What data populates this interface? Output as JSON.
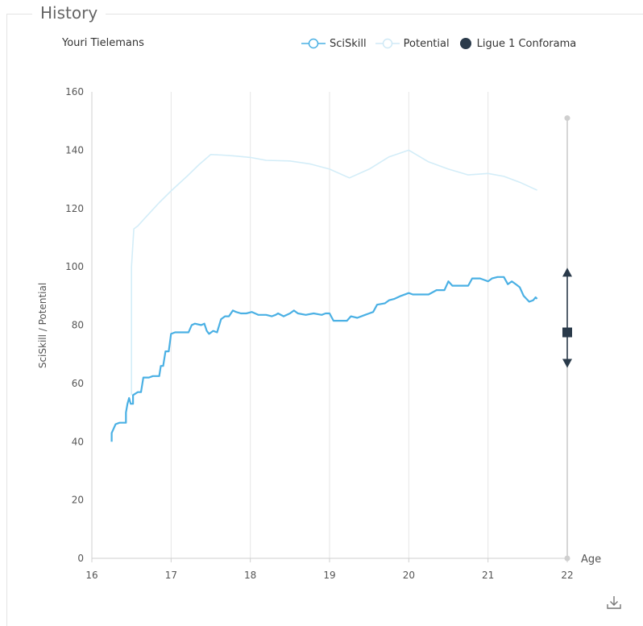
{
  "panel": {
    "title": "History"
  },
  "player": {
    "name": "Youri Tielemans"
  },
  "legend": {
    "sciskill_label": "SciSkill",
    "potential_label": "Potential",
    "league_label": "Ligue 1 Conforama"
  },
  "colors": {
    "sciskill": "#4ab0e4",
    "potential": "#d3edf8",
    "league": "#2a3a4a",
    "grid": "#e6e6e6",
    "axis": "#555555"
  },
  "icons": {
    "download": "download-icon"
  },
  "chart_data": {
    "type": "line",
    "ylabel": "SciSkill / Potential",
    "xlabel": "Age",
    "xlim": [
      16,
      22
    ],
    "ylim": [
      0,
      160
    ],
    "x_ticks": [
      16,
      17,
      18,
      19,
      20,
      21,
      22
    ],
    "y_ticks": [
      0,
      20,
      40,
      60,
      80,
      100,
      120,
      140,
      160
    ],
    "grid": "vertical",
    "legend_position": "top-right",
    "series": [
      {
        "name": "SciSkill",
        "points": [
          [
            16.25,
            40
          ],
          [
            16.25,
            43
          ],
          [
            16.3,
            46
          ],
          [
            16.35,
            46.5
          ],
          [
            16.43,
            46.5
          ],
          [
            16.43,
            50
          ],
          [
            16.45,
            53
          ],
          [
            16.47,
            55
          ],
          [
            16.49,
            53
          ],
          [
            16.52,
            53
          ],
          [
            16.52,
            56
          ],
          [
            16.58,
            57
          ],
          [
            16.62,
            57
          ],
          [
            16.65,
            62
          ],
          [
            16.72,
            62
          ],
          [
            16.77,
            62.5
          ],
          [
            16.85,
            62.5
          ],
          [
            16.87,
            66
          ],
          [
            16.9,
            66
          ],
          [
            16.93,
            71
          ],
          [
            16.97,
            71
          ],
          [
            17.0,
            77
          ],
          [
            17.05,
            77.5
          ],
          [
            17.22,
            77.5
          ],
          [
            17.26,
            80
          ],
          [
            17.3,
            80.5
          ],
          [
            17.38,
            80
          ],
          [
            17.42,
            80.5
          ],
          [
            17.45,
            78
          ],
          [
            17.48,
            77
          ],
          [
            17.53,
            78
          ],
          [
            17.58,
            77.5
          ],
          [
            17.63,
            82
          ],
          [
            17.68,
            83
          ],
          [
            17.73,
            83
          ],
          [
            17.78,
            85
          ],
          [
            17.82,
            84.5
          ],
          [
            17.88,
            84
          ],
          [
            17.95,
            84
          ],
          [
            18.02,
            84.5
          ],
          [
            18.1,
            83.5
          ],
          [
            18.2,
            83.5
          ],
          [
            18.27,
            83
          ],
          [
            18.32,
            83.5
          ],
          [
            18.35,
            84
          ],
          [
            18.42,
            83
          ],
          [
            18.5,
            84
          ],
          [
            18.55,
            85
          ],
          [
            18.6,
            84
          ],
          [
            18.7,
            83.5
          ],
          [
            18.8,
            84
          ],
          [
            18.9,
            83.5
          ],
          [
            18.95,
            84
          ],
          [
            19.0,
            84
          ],
          [
            19.05,
            81.5
          ],
          [
            19.1,
            81.5
          ],
          [
            19.22,
            81.5
          ],
          [
            19.27,
            83
          ],
          [
            19.35,
            82.5
          ],
          [
            19.45,
            83.5
          ],
          [
            19.5,
            84
          ],
          [
            19.55,
            84.5
          ],
          [
            19.6,
            87
          ],
          [
            19.7,
            87.5
          ],
          [
            19.75,
            88.5
          ],
          [
            19.82,
            89
          ],
          [
            19.9,
            90
          ],
          [
            20.0,
            91
          ],
          [
            20.05,
            90.5
          ],
          [
            20.15,
            90.5
          ],
          [
            20.25,
            90.5
          ],
          [
            20.35,
            92
          ],
          [
            20.45,
            92
          ],
          [
            20.5,
            95
          ],
          [
            20.55,
            93.5
          ],
          [
            20.75,
            93.5
          ],
          [
            20.8,
            96
          ],
          [
            20.9,
            96
          ],
          [
            20.95,
            95.5
          ],
          [
            21.0,
            95
          ],
          [
            21.05,
            96
          ],
          [
            21.12,
            96.5
          ],
          [
            21.2,
            96.5
          ],
          [
            21.25,
            94
          ],
          [
            21.3,
            95
          ],
          [
            21.35,
            94
          ],
          [
            21.4,
            93
          ],
          [
            21.45,
            90
          ],
          [
            21.52,
            88
          ],
          [
            21.57,
            88.5
          ],
          [
            21.6,
            89.5
          ],
          [
            21.62,
            89
          ]
        ]
      },
      {
        "name": "Potential",
        "points": [
          [
            16.5,
            56
          ],
          [
            16.5,
            100
          ],
          [
            16.53,
            113
          ],
          [
            16.58,
            114
          ],
          [
            16.68,
            117
          ],
          [
            16.85,
            122
          ],
          [
            17.0,
            126
          ],
          [
            17.2,
            131
          ],
          [
            17.35,
            135
          ],
          [
            17.5,
            138.5
          ],
          [
            17.65,
            138.3
          ],
          [
            17.8,
            138
          ],
          [
            18.0,
            137.5
          ],
          [
            18.2,
            136.5
          ],
          [
            18.5,
            136.3
          ],
          [
            18.75,
            135.3
          ],
          [
            19.0,
            133.5
          ],
          [
            19.25,
            130.5
          ],
          [
            19.5,
            133.5
          ],
          [
            19.75,
            137.7
          ],
          [
            20.0,
            140
          ],
          [
            20.25,
            136
          ],
          [
            20.5,
            133.5
          ],
          [
            20.75,
            131.5
          ],
          [
            21.0,
            132
          ],
          [
            21.2,
            131
          ],
          [
            21.4,
            129
          ],
          [
            21.6,
            126.5
          ],
          [
            21.62,
            126.3
          ]
        ]
      }
    ],
    "league_range": {
      "age": 22,
      "min": 0,
      "max": 151,
      "low": 67,
      "mid": 77.5,
      "high": 98
    }
  }
}
